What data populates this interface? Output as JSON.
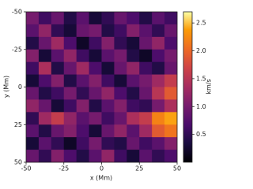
{
  "chart_data": {
    "type": "heatmap",
    "xlabel": "x (Mm)",
    "ylabel": "y (Mm)",
    "colorbar_label": "km/s",
    "xlim": [
      -50,
      50
    ],
    "xticks": [
      -50,
      -25,
      0,
      25,
      50
    ],
    "ylim": [
      50,
      -50
    ],
    "yticks": [
      -50,
      -25,
      0,
      25,
      50
    ],
    "colormap": "inferno",
    "clim": [
      0,
      2.7
    ],
    "cticks": [
      0.5,
      {
        "value": 1,
        "label": "1.0"
      },
      1.5,
      {
        "value": 2,
        "label": "2.0"
      },
      2.5
    ],
    "z": [
      [
        1.0,
        0.6,
        0.9,
        0.4,
        0.8,
        0.3,
        0.5,
        0.9,
        0.7,
        0.4,
        0.8,
        0.6
      ],
      [
        0.8,
        1.2,
        0.5,
        0.3,
        0.9,
        1.0,
        0.4,
        0.6,
        1.1,
        0.8,
        0.5,
        0.9
      ],
      [
        0.4,
        0.9,
        1.3,
        0.7,
        0.2,
        0.6,
        1.1,
        0.5,
        0.3,
        0.9,
        1.2,
        0.7
      ],
      [
        1.1,
        0.3,
        0.8,
        1.2,
        0.6,
        0.3,
        0.8,
        1.0,
        0.4,
        0.2,
        0.7,
        1.0
      ],
      [
        0.6,
        1.4,
        0.4,
        0.9,
        1.3,
        0.7,
        0.3,
        0.9,
        1.2,
        0.6,
        0.4,
        0.9
      ],
      [
        0.3,
        0.7,
        1.1,
        0.4,
        0.8,
        1.1,
        0.6,
        0.3,
        0.8,
        1.0,
        1.3,
        1.6
      ],
      [
        0.9,
        0.4,
        0.6,
        1.0,
        0.5,
        0.9,
        1.2,
        0.7,
        0.4,
        0.9,
        1.5,
        1.9
      ],
      [
        1.2,
        0.9,
        0.3,
        0.6,
        1.1,
        0.4,
        0.8,
        1.1,
        0.6,
        0.5,
        1.0,
        1.4
      ],
      [
        0.5,
        1.3,
        1.6,
        1.2,
        0.8,
        1.0,
        0.6,
        0.9,
        1.4,
        1.6,
        2.2,
        2.4
      ],
      [
        0.8,
        0.4,
        0.9,
        1.1,
        0.7,
        0.3,
        0.9,
        1.2,
        0.8,
        1.3,
        1.9,
        2.1
      ],
      [
        0.3,
        0.8,
        0.5,
        0.2,
        0.6,
        1.0,
        0.5,
        0.4,
        0.9,
        0.6,
        0.8,
        1.1
      ],
      [
        0.9,
        0.5,
        1.1,
        0.7,
        0.4,
        0.8,
        1.2,
        0.6,
        0.3,
        0.8,
        0.5,
        0.7
      ]
    ]
  }
}
